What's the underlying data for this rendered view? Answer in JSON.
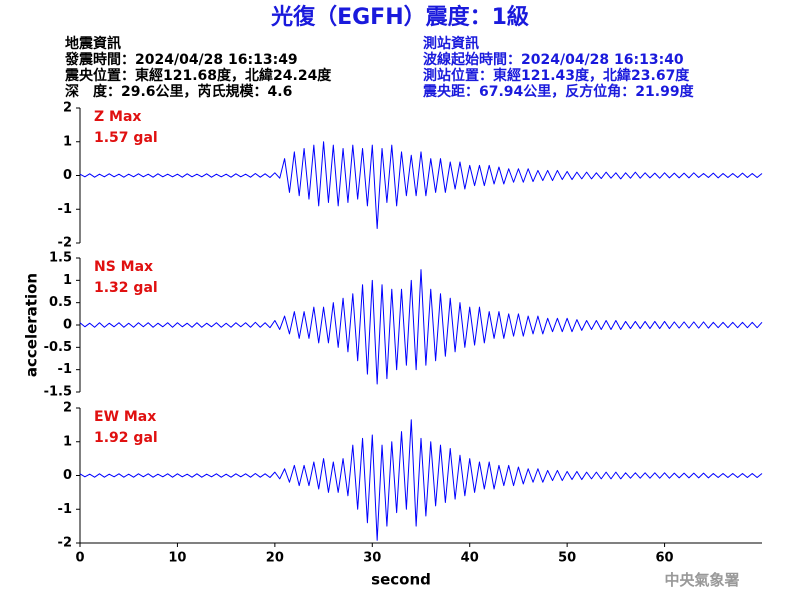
{
  "header": {
    "title": "光復（EGFH）震度：1級",
    "left": [
      "地震資訊",
      "發震時間：2024/04/28 16:13:49",
      "震央位置：東經121.68度，北緯24.24度",
      "深　度：29.6公里，芮氏規模：4.6"
    ],
    "right": [
      "測站資訊",
      "波線起始時間：2024/04/28 16:13:40",
      "測站位置：東經121.43度，北緯23.67度",
      "震央距：67.94公里，反方位角：21.99度"
    ]
  },
  "footer": "中央氣象署",
  "chart_data": [
    {
      "type": "line",
      "label": "Z Max",
      "max_text": "1.57 gal",
      "color": "#0000ff",
      "xlim": [
        0,
        70
      ],
      "ylim": [
        -2,
        2
      ],
      "yticks": [
        -2,
        -1,
        0,
        1,
        2
      ],
      "x": [
        0,
        0.5,
        1,
        1.5,
        2,
        2.5,
        3,
        3.5,
        4,
        4.5,
        5,
        5.5,
        6,
        6.5,
        7,
        7.5,
        8,
        8.5,
        9,
        9.5,
        10,
        10.5,
        11,
        11.5,
        12,
        12.5,
        13,
        13.5,
        14,
        14.5,
        15,
        15.5,
        16,
        16.5,
        17,
        17.5,
        18,
        18.5,
        19,
        19.5,
        20,
        20.5,
        21,
        21.5,
        22,
        22.5,
        23,
        23.5,
        24,
        24.5,
        25,
        25.5,
        26,
        26.5,
        27,
        27.5,
        28,
        28.5,
        29,
        29.5,
        30,
        30.5,
        31,
        31.5,
        32,
        32.5,
        33,
        33.5,
        34,
        34.5,
        35,
        35.5,
        36,
        36.5,
        37,
        37.5,
        38,
        38.5,
        39,
        39.5,
        40,
        40.5,
        41,
        41.5,
        42,
        42.5,
        43,
        43.5,
        44,
        44.5,
        45,
        45.5,
        46,
        46.5,
        47,
        47.5,
        48,
        48.5,
        49,
        49.5,
        50,
        50.5,
        51,
        51.5,
        52,
        52.5,
        53,
        53.5,
        54,
        54.5,
        55,
        55.5,
        56,
        56.5,
        57,
        57.5,
        58,
        58.5,
        59,
        59.5,
        60,
        60.5,
        61,
        61.5,
        62,
        62.5,
        63,
        63.5,
        64,
        64.5,
        65,
        65.5,
        66,
        66.5,
        67,
        67.5,
        68,
        68.5,
        69,
        69.5,
        70
      ],
      "values": [
        0.04,
        -0.04,
        0.05,
        -0.05,
        0.04,
        -0.04,
        0.05,
        -0.04,
        0.04,
        -0.05,
        0.04,
        -0.04,
        0.05,
        -0.04,
        0.04,
        -0.05,
        0.05,
        -0.04,
        0.04,
        -0.04,
        0.04,
        -0.05,
        0.05,
        -0.04,
        0.04,
        -0.04,
        0.05,
        -0.05,
        0.04,
        -0.04,
        0.04,
        -0.05,
        0.05,
        -0.04,
        0.04,
        -0.05,
        0.06,
        -0.05,
        0.05,
        -0.06,
        0.08,
        -0.08,
        0.5,
        -0.5,
        0.7,
        -0.6,
        0.8,
        -0.7,
        0.9,
        -0.9,
        1.0,
        -0.8,
        0.9,
        -0.9,
        0.8,
        -0.8,
        0.9,
        -0.7,
        0.8,
        -0.9,
        0.9,
        -1.57,
        0.8,
        -0.8,
        0.9,
        -0.9,
        0.7,
        -0.6,
        0.6,
        -0.6,
        0.7,
        -0.6,
        0.5,
        -0.5,
        0.5,
        -0.5,
        0.4,
        -0.4,
        0.4,
        -0.4,
        0.3,
        -0.3,
        0.3,
        -0.3,
        0.3,
        -0.25,
        0.25,
        -0.25,
        0.2,
        -0.2,
        0.2,
        -0.2,
        0.2,
        -0.18,
        0.15,
        -0.15,
        0.15,
        -0.15,
        0.15,
        -0.12,
        0.12,
        -0.12,
        0.1,
        -0.1,
        0.1,
        -0.1,
        0.08,
        -0.09,
        0.1,
        -0.08,
        0.08,
        -0.1,
        0.08,
        -0.08,
        0.1,
        -0.08,
        0.08,
        -0.07,
        0.07,
        -0.08,
        0.08,
        -0.07,
        0.07,
        -0.07,
        0.07,
        -0.07,
        0.08,
        -0.06,
        0.06,
        -0.06,
        0.07,
        -0.07,
        0.06,
        -0.06,
        0.06,
        -0.06,
        0.07,
        -0.06,
        0.06,
        -0.06,
        0.06
      ]
    },
    {
      "type": "line",
      "label": "NS Max",
      "max_text": "1.32 gal",
      "color": "#0000ff",
      "ylabel": "acceleration",
      "xlim": [
        0,
        70
      ],
      "ylim": [
        -1.5,
        1.5
      ],
      "yticks": [
        -1.5,
        -1,
        -0.5,
        0,
        0.5,
        1,
        1.5
      ],
      "x": [
        0,
        0.5,
        1,
        1.5,
        2,
        2.5,
        3,
        3.5,
        4,
        4.5,
        5,
        5.5,
        6,
        6.5,
        7,
        7.5,
        8,
        8.5,
        9,
        9.5,
        10,
        10.5,
        11,
        11.5,
        12,
        12.5,
        13,
        13.5,
        14,
        14.5,
        15,
        15.5,
        16,
        16.5,
        17,
        17.5,
        18,
        18.5,
        19,
        19.5,
        20,
        20.5,
        21,
        21.5,
        22,
        22.5,
        23,
        23.5,
        24,
        24.5,
        25,
        25.5,
        26,
        26.5,
        27,
        27.5,
        28,
        28.5,
        29,
        29.5,
        30,
        30.5,
        31,
        31.5,
        32,
        32.5,
        33,
        33.5,
        34,
        34.5,
        35,
        35.5,
        36,
        36.5,
        37,
        37.5,
        38,
        38.5,
        39,
        39.5,
        40,
        40.5,
        41,
        41.5,
        42,
        42.5,
        43,
        43.5,
        44,
        44.5,
        45,
        45.5,
        46,
        46.5,
        47,
        47.5,
        48,
        48.5,
        49,
        49.5,
        50,
        50.5,
        51,
        51.5,
        52,
        52.5,
        53,
        53.5,
        54,
        54.5,
        55,
        55.5,
        56,
        56.5,
        57,
        57.5,
        58,
        58.5,
        59,
        59.5,
        60,
        60.5,
        61,
        61.5,
        62,
        62.5,
        63,
        63.5,
        64,
        64.5,
        65,
        65.5,
        66,
        66.5,
        67,
        67.5,
        68,
        68.5,
        69,
        69.5,
        70
      ],
      "values": [
        0.05,
        -0.04,
        0.04,
        -0.05,
        0.05,
        -0.05,
        0.04,
        -0.04,
        0.05,
        -0.05,
        0.04,
        -0.05,
        0.05,
        -0.04,
        0.05,
        -0.05,
        0.04,
        -0.04,
        0.05,
        -0.05,
        0.05,
        -0.04,
        0.04,
        -0.05,
        0.05,
        -0.05,
        0.04,
        -0.04,
        0.05,
        -0.05,
        0.04,
        -0.05,
        0.05,
        -0.04,
        0.05,
        -0.05,
        0.06,
        -0.05,
        0.05,
        -0.06,
        0.1,
        -0.1,
        0.2,
        -0.2,
        0.3,
        -0.3,
        0.3,
        -0.3,
        0.4,
        -0.4,
        0.4,
        -0.4,
        0.5,
        -0.5,
        0.6,
        -0.6,
        0.7,
        -0.8,
        0.9,
        -1.1,
        1.0,
        -1.32,
        0.9,
        -1.2,
        0.8,
        -1.0,
        0.8,
        -0.9,
        1.0,
        -1.0,
        1.24,
        -0.9,
        0.8,
        -0.8,
        0.7,
        -0.7,
        0.6,
        -0.6,
        0.5,
        -0.5,
        0.4,
        -0.45,
        0.4,
        -0.4,
        0.3,
        -0.3,
        0.3,
        -0.3,
        0.25,
        -0.25,
        0.25,
        -0.25,
        0.2,
        -0.2,
        0.2,
        -0.2,
        0.15,
        -0.15,
        0.15,
        -0.15,
        0.15,
        -0.15,
        0.12,
        -0.12,
        0.1,
        -0.1,
        0.1,
        -0.1,
        0.1,
        -0.1,
        0.1,
        -0.1,
        0.08,
        -0.08,
        0.08,
        -0.08,
        0.08,
        -0.08,
        0.08,
        -0.08,
        0.08,
        -0.08,
        0.07,
        -0.07,
        0.07,
        -0.07,
        0.07,
        -0.07,
        0.07,
        -0.07,
        0.06,
        -0.06,
        0.06,
        -0.06,
        0.06,
        -0.06,
        0.06,
        -0.06,
        0.06,
        -0.06,
        0.06
      ]
    },
    {
      "type": "line",
      "label": "EW Max",
      "max_text": "1.92 gal",
      "color": "#0000ff",
      "xlabel": "second",
      "xlim": [
        0,
        70
      ],
      "xticks": [
        0,
        10,
        20,
        30,
        40,
        50,
        60
      ],
      "ylim": [
        -2,
        2
      ],
      "yticks": [
        -2,
        -1,
        0,
        1,
        2
      ],
      "x": [
        0,
        0.5,
        1,
        1.5,
        2,
        2.5,
        3,
        3.5,
        4,
        4.5,
        5,
        5.5,
        6,
        6.5,
        7,
        7.5,
        8,
        8.5,
        9,
        9.5,
        10,
        10.5,
        11,
        11.5,
        12,
        12.5,
        13,
        13.5,
        14,
        14.5,
        15,
        15.5,
        16,
        16.5,
        17,
        17.5,
        18,
        18.5,
        19,
        19.5,
        20,
        20.5,
        21,
        21.5,
        22,
        22.5,
        23,
        23.5,
        24,
        24.5,
        25,
        25.5,
        26,
        26.5,
        27,
        27.5,
        28,
        28.5,
        29,
        29.5,
        30,
        30.5,
        31,
        31.5,
        32,
        32.5,
        33,
        33.5,
        34,
        34.5,
        35,
        35.5,
        36,
        36.5,
        37,
        37.5,
        38,
        38.5,
        39,
        39.5,
        40,
        40.5,
        41,
        41.5,
        42,
        42.5,
        43,
        43.5,
        44,
        44.5,
        45,
        45.5,
        46,
        46.5,
        47,
        47.5,
        48,
        48.5,
        49,
        49.5,
        50,
        50.5,
        51,
        51.5,
        52,
        52.5,
        53,
        53.5,
        54,
        54.5,
        55,
        55.5,
        56,
        56.5,
        57,
        57.5,
        58,
        58.5,
        59,
        59.5,
        60,
        60.5,
        61,
        61.5,
        62,
        62.5,
        63,
        63.5,
        64,
        64.5,
        65,
        65.5,
        66,
        66.5,
        67,
        67.5,
        68,
        68.5,
        69,
        69.5,
        70
      ],
      "values": [
        0.05,
        -0.04,
        0.04,
        -0.05,
        0.05,
        -0.05,
        0.04,
        -0.04,
        0.05,
        -0.05,
        0.04,
        -0.05,
        0.05,
        -0.04,
        0.05,
        -0.05,
        0.04,
        -0.04,
        0.05,
        -0.05,
        0.05,
        -0.04,
        0.04,
        -0.05,
        0.05,
        -0.05,
        0.04,
        -0.04,
        0.05,
        -0.05,
        0.04,
        -0.05,
        0.05,
        -0.04,
        0.05,
        -0.05,
        0.06,
        -0.05,
        0.05,
        -0.06,
        0.1,
        -0.1,
        0.2,
        -0.2,
        0.3,
        -0.3,
        0.3,
        -0.3,
        0.4,
        -0.4,
        0.5,
        -0.5,
        0.4,
        -0.5,
        0.5,
        -0.6,
        0.9,
        -1.0,
        1.1,
        -1.4,
        1.2,
        -1.92,
        0.9,
        -1.5,
        1.0,
        -1.1,
        1.3,
        -1.0,
        1.65,
        -1.5,
        1.1,
        -1.2,
        1.0,
        -0.9,
        0.9,
        -0.8,
        0.8,
        -0.7,
        0.6,
        -0.6,
        0.5,
        -0.5,
        0.4,
        -0.4,
        0.4,
        -0.4,
        0.3,
        -0.3,
        0.3,
        -0.3,
        0.25,
        -0.25,
        0.2,
        -0.2,
        0.2,
        -0.2,
        0.15,
        -0.15,
        0.15,
        -0.15,
        0.12,
        -0.12,
        0.12,
        -0.12,
        0.1,
        -0.1,
        0.1,
        -0.1,
        0.1,
        -0.1,
        0.1,
        -0.1,
        0.08,
        -0.08,
        0.08,
        -0.08,
        0.08,
        -0.08,
        0.08,
        -0.08,
        0.08,
        -0.08,
        0.07,
        -0.07,
        0.07,
        -0.07,
        0.07,
        -0.07,
        0.07,
        -0.07,
        0.06,
        -0.06,
        0.06,
        -0.06,
        0.06,
        -0.06,
        0.06,
        -0.06,
        0.06,
        -0.06,
        0.06
      ]
    }
  ]
}
